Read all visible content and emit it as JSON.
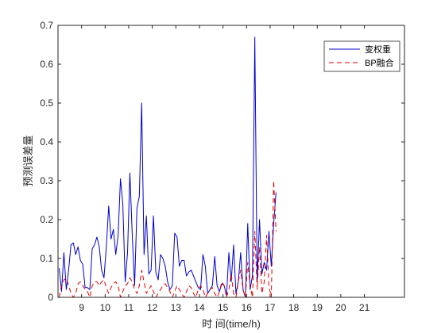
{
  "chart_data": {
    "type": "line",
    "xlabel": "时 间(time/h)",
    "ylabel": "预测误差量",
    "xlim": [
      8,
      22.7
    ],
    "ylim": [
      0,
      0.7
    ],
    "x_ticks": [
      9,
      10,
      11,
      12,
      13,
      14,
      15,
      16,
      17,
      18,
      19,
      20,
      21
    ],
    "y_ticks": [
      0,
      0.1,
      0.2,
      0.3,
      0.4,
      0.5,
      0.6,
      0.7
    ],
    "y_tick_labels": [
      "0",
      "0.1",
      "0.2",
      "0.3",
      "0.4",
      "0.5",
      "0.6",
      "0.7"
    ],
    "grid": false,
    "legend_position": "top-right",
    "x_start": 8.05,
    "x_step": 0.1,
    "series": [
      {
        "name": "变权重",
        "color": "#0000cc",
        "dash": "solid",
        "values": [
          0.075,
          0.015,
          0.115,
          0.02,
          0.07,
          0.135,
          0.14,
          0.11,
          0.13,
          0.095,
          0.085,
          0.025,
          0.025,
          0.02,
          0.125,
          0.135,
          0.155,
          0.13,
          0.07,
          0.05,
          0.13,
          0.235,
          0.15,
          0.175,
          0.11,
          0.16,
          0.305,
          0.24,
          0.04,
          0.115,
          0.32,
          0.16,
          0.03,
          0.23,
          0.26,
          0.5,
          0.11,
          0.21,
          0.06,
          0.07,
          0.21,
          0.065,
          0.045,
          0.11,
          0.1,
          0.08,
          0.04,
          0.02,
          0.03,
          0.165,
          0.155,
          0.08,
          0.095,
          0.095,
          0.055,
          0.065,
          0.07,
          0.055,
          0.04,
          0.025,
          0.02,
          0.11,
          0.08,
          0.01,
          0.02,
          0.03,
          0.105,
          0.03,
          0.015,
          0.035,
          0.03,
          0.005,
          0.115,
          0.04,
          0.135,
          0.01,
          0.04,
          0.115,
          0.02,
          0.0,
          0.19,
          0.02,
          0.055,
          0.67,
          0.04,
          0.2,
          0.06,
          0.09,
          0.07,
          0.17,
          0.08,
          0.19,
          0.27
        ]
      },
      {
        "name": "BP融合",
        "color": "#e00000",
        "dash": "dashed",
        "values": [
          0.0,
          0.03,
          0.045,
          0.05,
          0.03,
          0.01,
          0.0,
          0.01,
          0.035,
          0.04,
          0.03,
          0.02,
          0.015,
          0.0,
          0.03,
          0.04,
          0.04,
          0.03,
          0.04,
          0.045,
          0.025,
          0.01,
          0.025,
          0.035,
          0.04,
          0.03,
          0.0,
          0.015,
          0.03,
          0.035,
          0.05,
          0.04,
          0.02,
          0.01,
          0.03,
          0.07,
          0.04,
          0.01,
          0.02,
          0.03,
          0.015,
          0.0,
          0.01,
          0.02,
          0.03,
          0.035,
          0.025,
          0.015,
          0.0,
          0.015,
          0.03,
          0.02,
          0.01,
          0.0,
          0.015,
          0.03,
          0.025,
          0.01,
          0.0,
          0.02,
          0.03,
          0.02,
          0.0,
          0.01,
          0.02,
          0.025,
          0.01,
          0.0,
          0.015,
          0.04,
          0.03,
          0.0,
          0.02,
          0.06,
          0.01,
          0.0,
          0.04,
          0.07,
          0.02,
          0.0,
          0.09,
          0.03,
          0.0,
          0.17,
          0.02,
          0.13,
          0.01,
          0.04,
          0.16,
          0.03,
          0.0,
          0.3,
          0.17
        ]
      }
    ]
  }
}
